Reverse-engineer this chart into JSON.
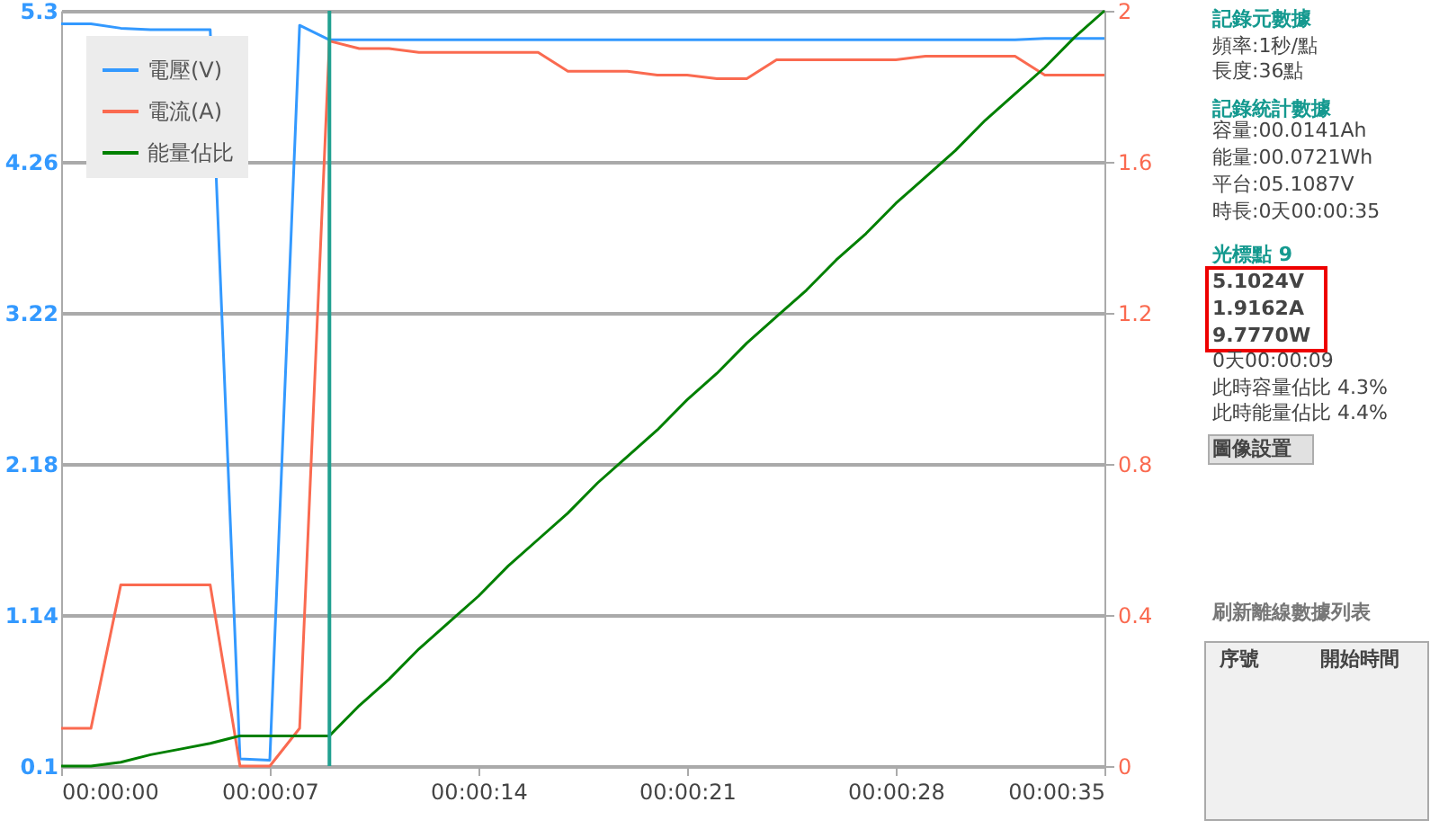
{
  "chart_data": {
    "type": "line",
    "x": [
      0,
      1,
      2,
      3,
      4,
      5,
      6,
      7,
      8,
      9,
      10,
      11,
      12,
      13,
      14,
      15,
      16,
      17,
      18,
      19,
      20,
      21,
      22,
      23,
      24,
      25,
      26,
      27,
      28,
      29,
      30,
      31,
      32,
      33,
      34,
      35
    ],
    "xlim": [
      0,
      35
    ],
    "xticks": [
      {
        "value": 0,
        "label": "00:00:00"
      },
      {
        "value": 7,
        "label": "00:00:07"
      },
      {
        "value": 14,
        "label": "00:00:14"
      },
      {
        "value": 21,
        "label": "00:00:21"
      },
      {
        "value": 28,
        "label": "00:00:28"
      },
      {
        "value": 35,
        "label": "00:00:35"
      }
    ],
    "ylim": [
      0.1,
      5.3
    ],
    "yticks": [
      0.1,
      1.14,
      2.18,
      3.22,
      4.26,
      5.3
    ],
    "y2lim": [
      0,
      2
    ],
    "y2ticks": [
      0,
      0.4,
      0.8,
      1.2,
      1.6,
      2
    ],
    "grid": "y",
    "legend": "top left",
    "marker": "none",
    "line_style": "solid",
    "series": [
      {
        "name": "電壓(V)",
        "color": "#3399ff",
        "values": [
          5.21,
          5.21,
          5.18,
          5.17,
          5.17,
          5.17,
          0.15,
          0.14,
          5.2,
          5.1,
          5.1,
          5.1,
          5.1,
          5.1,
          5.1,
          5.1,
          5.1,
          5.1,
          5.1,
          5.1,
          5.1,
          5.1,
          5.1,
          5.1,
          5.1,
          5.1,
          5.1,
          5.1,
          5.1,
          5.1,
          5.1,
          5.1,
          5.1,
          5.11,
          5.11,
          5.11
        ]
      },
      {
        "name": "電流(A)",
        "color": "#fa6a50",
        "axis": "y2",
        "values": [
          0.1,
          0.1,
          0.48,
          0.48,
          0.48,
          0.48,
          0,
          0,
          0.1,
          1.92,
          1.9,
          1.9,
          1.89,
          1.89,
          1.89,
          1.89,
          1.89,
          1.84,
          1.84,
          1.84,
          1.83,
          1.83,
          1.82,
          1.82,
          1.87,
          1.87,
          1.87,
          1.87,
          1.87,
          1.88,
          1.88,
          1.88,
          1.88,
          1.83,
          1.83,
          1.83
        ]
      },
      {
        "name": "能量佔比",
        "color": "#008000",
        "axis": "y2",
        "values": [
          0,
          0,
          0.01,
          0.03,
          0.045,
          0.06,
          0.08,
          0.08,
          0.08,
          0.08,
          0.16,
          0.23,
          0.31,
          0.38,
          0.45,
          0.53,
          0.6,
          0.67,
          0.75,
          0.82,
          0.89,
          0.97,
          1.04,
          1.12,
          1.19,
          1.26,
          1.34,
          1.41,
          1.49,
          1.56,
          1.63,
          1.71,
          1.78,
          1.85,
          1.93,
          2.0
        ]
      }
    ],
    "ref_lines": [
      {
        "axis": "x",
        "value": 9,
        "color": "#20a090"
      }
    ],
    "annotations": [
      "記錄元數據",
      "頻率:1秒/點",
      "長度:36點",
      "記錄統計數據",
      "容量:00.0141Ah",
      "能量:00.0721Wh",
      "平台:05.1087V",
      "時長:0天00:00:35",
      "光標點 9",
      "5.1024V",
      "1.9162A",
      "9.7770W",
      "0天00:00:09",
      "此時容量佔比 4.3%",
      "此時能量佔比 4.4%",
      "圖像設置",
      "刷新離線數據列表",
      "序號",
      "開始時間"
    ]
  }
}
